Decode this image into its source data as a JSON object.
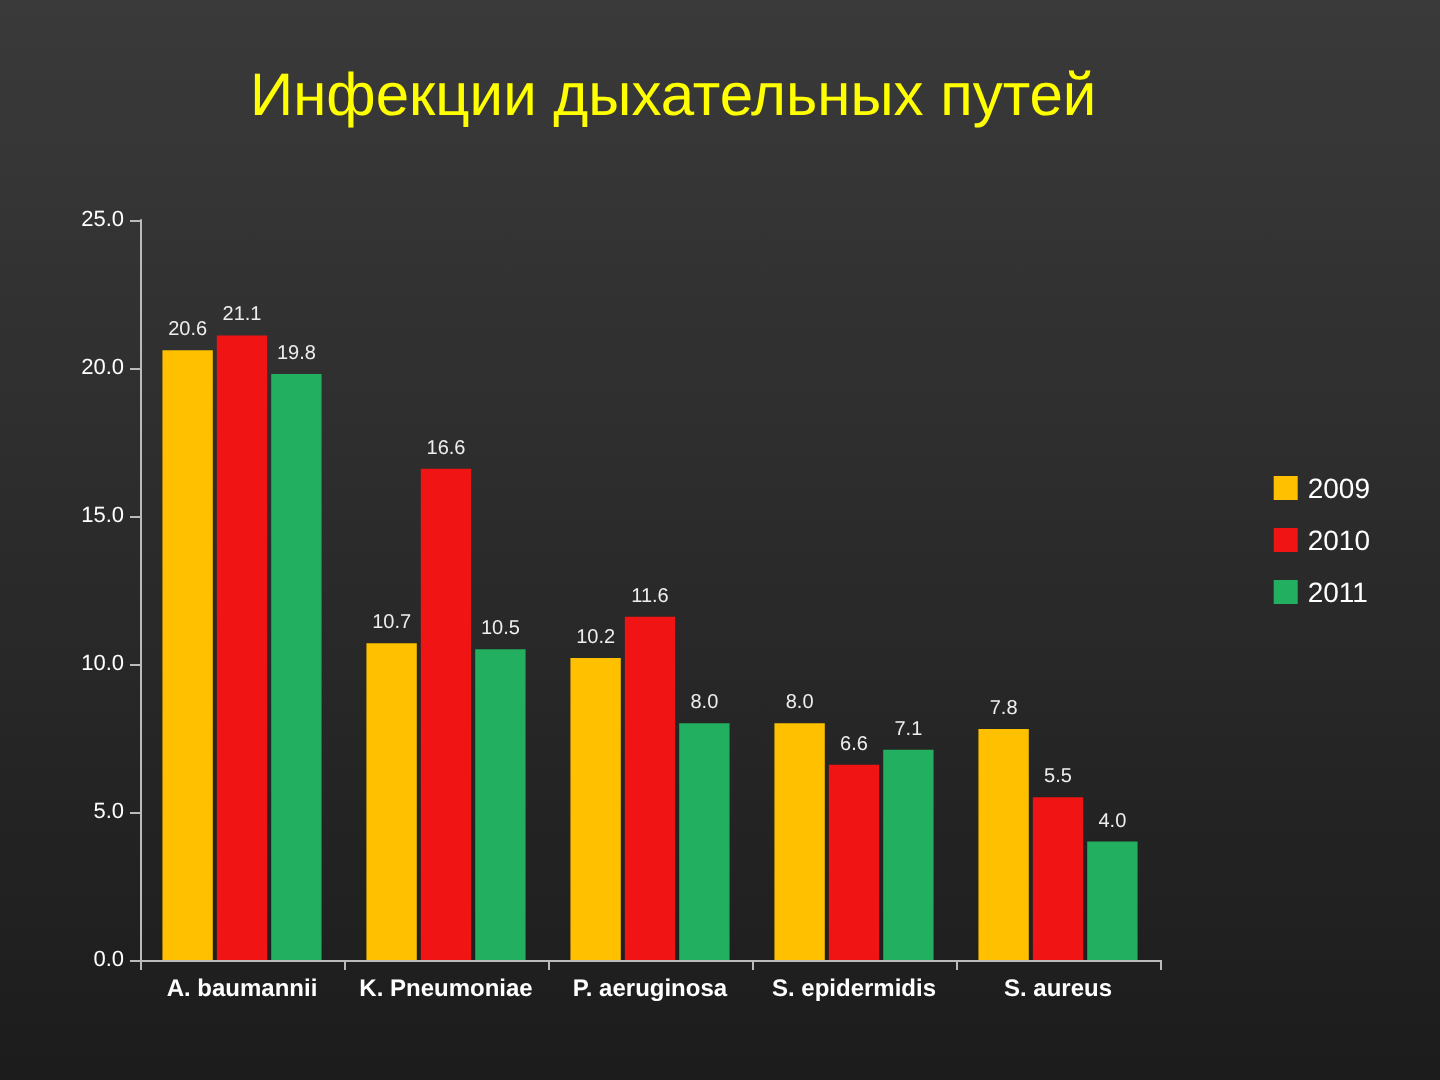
{
  "chart_data": {
    "type": "bar",
    "title": "Инфекции дыхательных путей",
    "categories": [
      "A. baumannii",
      "K. Pneumoniae",
      "P. aeruginosa",
      "S. epidermidis",
      "S. aureus"
    ],
    "series": [
      {
        "name": "2009",
        "color": "#ffc000",
        "values": [
          20.6,
          10.7,
          10.2,
          8.0,
          7.8
        ],
        "value_labels": [
          "20.6",
          "10.7",
          "10.2",
          "8.0",
          "7.8"
        ]
      },
      {
        "name": "2010",
        "color": "#f01414",
        "values": [
          21.1,
          16.6,
          11.6,
          6.6,
          5.5
        ],
        "value_labels": [
          "21.1",
          "16.6",
          "11.6",
          "6.6",
          "5.5"
        ]
      },
      {
        "name": "2011",
        "color": "#22b060",
        "values": [
          19.8,
          10.5,
          8.0,
          7.1,
          4.0
        ],
        "value_labels": [
          "19.8",
          "10.5",
          "8.0",
          "7.1",
          "4.0"
        ]
      }
    ],
    "ylim": [
      0,
      25
    ],
    "yticks": [
      {
        "value": 0,
        "label": "0.0"
      },
      {
        "value": 5,
        "label": "5.0"
      },
      {
        "value": 10,
        "label": "10.0"
      },
      {
        "value": 15,
        "label": "15.0"
      },
      {
        "value": 20,
        "label": "20.0"
      },
      {
        "value": 25,
        "label": "25.0"
      }
    ],
    "legend": "right"
  }
}
